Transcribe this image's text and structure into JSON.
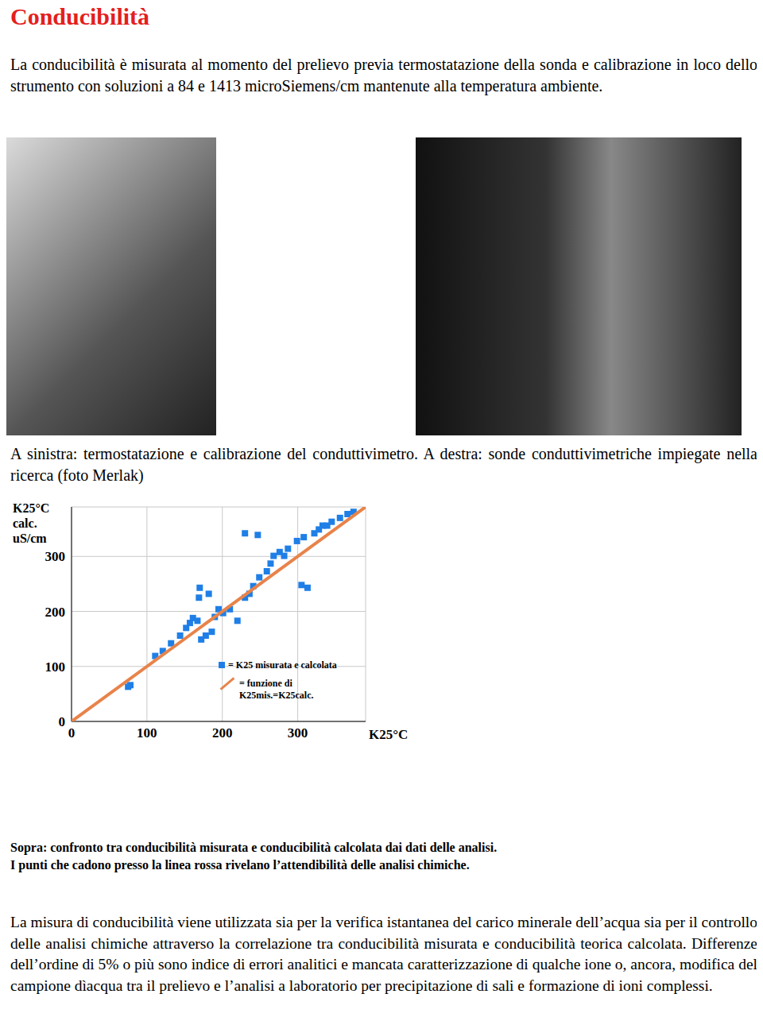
{
  "title": "Conducibilità",
  "intro": "La conducibilità è misurata al momento del prelievo previa termostatazione della sonda e calibrazione in loco dello strumento con soluzioni a 84 e 1413 microSiemens/cm mantenute alla temperatura ambiente.",
  "photo_caption": "A sinistra: termostatazione e calibrazione del conduttivimetro. A destra: sonde conduttivimetriche impiegate nella ricerca (foto Merlak)",
  "chart_data": {
    "type": "scatter",
    "y_label": [
      "K25°C",
      "calc.",
      "uS/cm"
    ],
    "x_label": "K25°C",
    "xlim": [
      0,
      390
    ],
    "ylim": [
      0,
      390
    ],
    "xticks": [
      0,
      100,
      200,
      300
    ],
    "yticks": [
      0,
      100,
      200,
      300
    ],
    "grid": true,
    "legend": "lower right",
    "series": [
      {
        "name": "= K25 misurata e calcolata",
        "color": "#1f7fe6",
        "marker": "square",
        "x": [
          75,
          78,
          111,
          121,
          132,
          144,
          152,
          157,
          161,
          167,
          169,
          170,
          182,
          172,
          178,
          186,
          190,
          195,
          201,
          210,
          220,
          230,
          236,
          241,
          249,
          259,
          264,
          268,
          276,
          282,
          287,
          230,
          247,
          305,
          313,
          299,
          308,
          322,
          328,
          333,
          339,
          345,
          356,
          366,
          374
        ],
        "y": [
          63,
          66,
          119,
          128,
          142,
          156,
          170,
          179,
          188,
          183,
          225,
          243,
          232,
          149,
          156,
          163,
          190,
          204,
          197,
          204,
          183,
          225,
          232,
          246,
          262,
          273,
          287,
          301,
          308,
          301,
          314,
          342,
          339,
          248,
          243,
          328,
          335,
          342,
          349,
          356,
          356,
          363,
          370,
          377,
          381
        ]
      },
      {
        "name": "= funzione di K25mis.=K25calc.",
        "color": "#e8834a",
        "type": "line",
        "x": [
          0,
          390
        ],
        "y": [
          0,
          390
        ]
      }
    ]
  },
  "chart_caption": [
    "Sopra: confronto tra conducibilità misurata e conducibilità calcolata dai dati delle analisi.",
    "I punti che cadono presso la linea rossa rivelano l’attendibilità delle analisi chimiche."
  ],
  "body": "La misura di conducibilità viene utilizzata sia per la verifica istantanea del carico minerale dell’acqua sia per il controllo delle analisi chimiche attraverso la correlazione tra conducibilità misurata e conducibilità teorica calcolata. Differenze dell’ordine di 5% o più sono indice di errori analitici e mancata caratterizzazione di qualche ione o, ancora, modifica del campione dìacqua tra il prelievo e l’analisi a laboratorio per precipitazione di sali e formazione di ioni complessi."
}
